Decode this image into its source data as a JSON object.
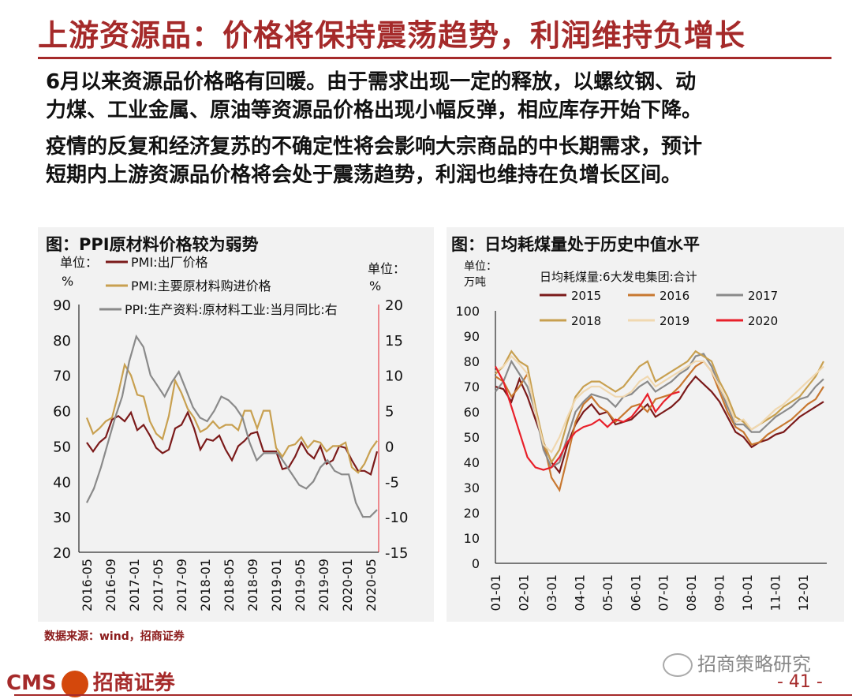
{
  "header": {
    "title": "上游资源品：价格将保持震荡趋势，利润维持负增长"
  },
  "paragraphs": [
    {
      "line1": "6月以来资源品价格略有回暖。由于需求出现一定的释放，以螺纹钢、动",
      "line2": "力煤、工业金属、原油等资源品价格出现小幅反弹，相应库存开始下降。"
    },
    {
      "line1": "疫情的反复和经济复苏的不确定性将会影响大宗商品的中长期需求，预计",
      "line2": "短期内上游资源品价格将会处于震荡趋势，利润也维持在负增长区间。"
    }
  ],
  "footer": {
    "source": "数据来源：wind，招商证券",
    "brand": "CMS",
    "brand_cn": "招商证券",
    "wechat": "招商策略研究",
    "page": "- 41 -"
  },
  "chart_data": [
    {
      "type": "line",
      "title": "图：PPI原材料价格较为弱势",
      "left_unit": "单位：%",
      "right_unit": "单位：%",
      "ylim_left": [
        20,
        90
      ],
      "yticks_left": [
        20,
        30,
        40,
        50,
        60,
        70,
        80,
        90
      ],
      "ylim_right": [
        -15,
        20
      ],
      "yticks_right": [
        -15,
        -10,
        -5,
        0,
        5,
        10,
        15,
        20
      ],
      "x_ticks": [
        "2016-05",
        "2016-09",
        "2017-01",
        "2017-05",
        "2017-09",
        "2018-01",
        "2018-05",
        "2018-09",
        "2019-01",
        "2019-05",
        "2019-09",
        "2020-01",
        "2020-05"
      ],
      "series": [
        {
          "name": "PMI:出厂价格",
          "axis": "left",
          "color": "#7b1a1a",
          "values": [
            51.0,
            48.5,
            51.0,
            52.5,
            57.5,
            58.5,
            57.0,
            59.5,
            54.5,
            56.0,
            53.0,
            49.5,
            48.0,
            49.0,
            55.0,
            56.0,
            59.5,
            55.0,
            49.0,
            52.0,
            51.5,
            53.0,
            49.0,
            46.0,
            50.0,
            51.5,
            53.5,
            54.0,
            48.5,
            48.5,
            48.5,
            43.5,
            44.0,
            47.0,
            51.0,
            48.0,
            46.5,
            50.0,
            45.0,
            46.0,
            50.0,
            49.5,
            46.0,
            43.0,
            43.0,
            42.0,
            48.5
          ]
        },
        {
          "name": "PMI:主要原材料购进价格",
          "axis": "left",
          "color": "#c8a050",
          "values": [
            58.0,
            53.5,
            55.0,
            57.0,
            58.0,
            65.0,
            73.0,
            70.0,
            64.5,
            64.0,
            57.0,
            53.5,
            52.0,
            58.5,
            68.5,
            65.0,
            60.5,
            58.0,
            54.0,
            55.0,
            57.0,
            55.0,
            56.0,
            56.0,
            54.5,
            60.0,
            60.0,
            55.0,
            60.0,
            60.0,
            49.5,
            47.0,
            50.0,
            50.5,
            52.5,
            49.5,
            51.5,
            51.0,
            48.5,
            50.0,
            50.0,
            51.0,
            44.0,
            42.5,
            45.0,
            49.0,
            51.5
          ]
        },
        {
          "name": "PPI:生产资料:原材料工业:当月同比:右",
          "axis": "right",
          "color": "#8a8a8a",
          "values": [
            -8.0,
            -6.0,
            -3.0,
            0.5,
            4.0,
            7.0,
            12.0,
            15.5,
            14.0,
            10.0,
            8.5,
            7.0,
            9.0,
            10.5,
            8.0,
            5.5,
            4.0,
            3.5,
            5.0,
            7.0,
            6.5,
            5.5,
            4.0,
            0.5,
            -2.0,
            -1.0,
            -1.0,
            -1.0,
            -2.5,
            -4.0,
            -5.5,
            -6.0,
            -5.0,
            -3.0,
            -2.0,
            -3.5,
            -4.0,
            -4.0,
            -8.0,
            -10.0,
            -10.0,
            -9.0
          ]
        }
      ]
    },
    {
      "type": "line",
      "title": "图：日均耗煤量处于历史中值水平",
      "unit": "单位：万吨",
      "subtitle": "日均耗煤量:6大发电集团:合计",
      "ylim": [
        0,
        100
      ],
      "yticks": [
        0,
        10,
        20,
        30,
        40,
        50,
        60,
        70,
        80,
        90,
        100
      ],
      "x_ticks": [
        "01-01",
        "02-01",
        "03-01",
        "04-01",
        "05-01",
        "06-01",
        "07-01",
        "08-01",
        "09-01",
        "10-01",
        "11-01",
        "12-01"
      ],
      "series": [
        {
          "name": "2015",
          "color": "#7b1a1a",
          "values": [
            70,
            69,
            64,
            73,
            66,
            57,
            48,
            40,
            36,
            47,
            55,
            60,
            63,
            59,
            60,
            55,
            56,
            57,
            60,
            63,
            58,
            60,
            62,
            65,
            70,
            74,
            71,
            68,
            64,
            58,
            52,
            50,
            46,
            48,
            49,
            51,
            52,
            55,
            58,
            60,
            62,
            64
          ]
        },
        {
          "name": "2016",
          "color": "#c87830",
          "values": [
            74,
            72,
            66,
            70,
            75,
            60,
            48,
            34,
            29,
            42,
            56,
            63,
            66,
            62,
            60,
            56,
            59,
            62,
            63,
            60,
            65,
            66,
            67,
            70,
            74,
            78,
            80,
            76,
            68,
            60,
            54,
            52,
            47,
            48,
            51,
            53,
            55,
            57,
            60,
            63,
            65,
            70
          ]
        },
        {
          "name": "2017",
          "color": "#8a8a8a",
          "values": [
            68,
            72,
            80,
            75,
            70,
            60,
            45,
            38,
            40,
            50,
            60,
            64,
            67,
            66,
            65,
            62,
            66,
            67,
            70,
            72,
            68,
            70,
            72,
            75,
            77,
            82,
            83,
            78,
            70,
            62,
            55,
            55,
            52,
            52,
            55,
            58,
            60,
            62,
            65,
            66,
            70,
            73
          ]
        },
        {
          "name": "2018",
          "color": "#c8a050",
          "values": [
            75,
            78,
            84,
            80,
            78,
            62,
            48,
            40,
            45,
            56,
            66,
            70,
            72,
            72,
            70,
            68,
            70,
            74,
            78,
            80,
            72,
            74,
            76,
            78,
            80,
            84,
            82,
            80,
            72,
            66,
            58,
            56,
            53,
            55,
            57,
            59,
            62,
            64,
            66,
            70,
            74,
            80
          ]
        },
        {
          "name": "2019",
          "color": "#f0d8b0",
          "values": [
            76,
            78,
            82,
            79,
            75,
            60,
            47,
            44,
            50,
            58,
            65,
            68,
            70,
            70,
            68,
            66,
            66,
            68,
            72,
            74,
            70,
            72,
            74,
            76,
            78,
            80,
            80,
            76,
            70,
            64,
            56,
            57,
            53,
            55,
            58,
            61,
            63,
            66,
            69,
            72,
            75,
            78
          ]
        },
        {
          "name": "2020",
          "color": "#e8202a",
          "values": [
            78,
            72,
            62,
            52,
            42,
            38,
            37,
            38,
            42,
            48,
            52,
            54,
            55,
            57,
            54,
            57,
            56,
            58,
            62,
            67,
            60,
            64,
            67,
            68
          ]
        }
      ]
    }
  ]
}
